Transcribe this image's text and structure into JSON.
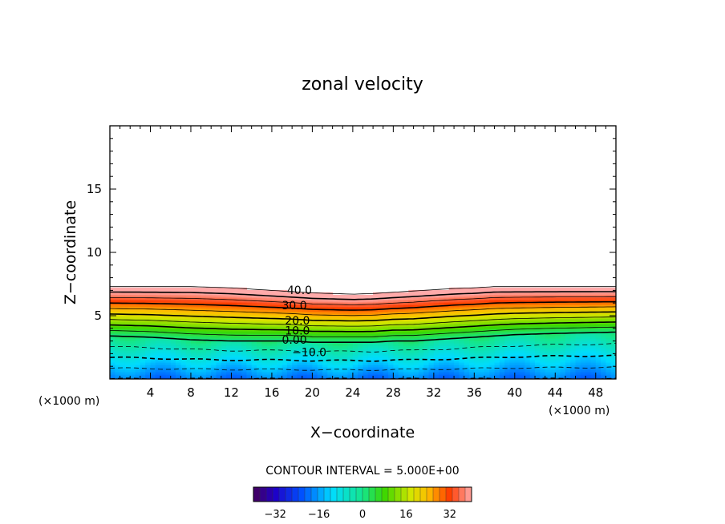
{
  "chart_data": {
    "type": "heatmap",
    "title": "zonal velocity",
    "xlabel": "X−coordinate",
    "ylabel": "Z−coordinate",
    "x_unit_left": "(×1000 m)",
    "x_unit_right": "(×1000 m)",
    "xlim": [
      0,
      50
    ],
    "ylim": [
      0,
      20
    ],
    "x_ticks": [
      4,
      8,
      12,
      16,
      20,
      24,
      28,
      32,
      36,
      40,
      44,
      48
    ],
    "y_ticks": [
      5,
      10,
      15
    ],
    "contour_interval_label": "CONTOUR INTERVAL = 5.000E+00",
    "contour_interval": 5.0,
    "contour_labels": [
      {
        "text": "40.0",
        "x": 17.5,
        "z": 6.7
      },
      {
        "text": "30.0",
        "x": 17.0,
        "z": 5.5
      },
      {
        "text": "20.0",
        "x": 17.3,
        "z": 4.3
      },
      {
        "text": "10.0",
        "x": 17.3,
        "z": 3.5
      },
      {
        "text": "0.00",
        "x": 17.0,
        "z": 2.8
      },
      {
        "text": "−10.0",
        "x": 18.0,
        "z": 1.8
      }
    ],
    "field_profile": {
      "x": [
        0,
        4,
        8,
        12,
        14,
        16,
        18,
        20,
        22,
        24,
        26,
        28,
        30,
        32,
        34,
        36,
        38,
        40,
        44,
        50
      ],
      "top_height": [
        7.3,
        7.3,
        7.3,
        7.2,
        7.1,
        7.0,
        6.9,
        6.8,
        6.75,
        6.7,
        6.75,
        6.85,
        6.95,
        7.05,
        7.15,
        7.2,
        7.3,
        7.3,
        7.3,
        7.3
      ],
      "zero_height": [
        3.4,
        3.3,
        3.1,
        3.0,
        3.0,
        3.0,
        3.0,
        2.9,
        2.9,
        2.9,
        2.9,
        3.0,
        3.0,
        3.1,
        3.2,
        3.3,
        3.4,
        3.5,
        3.6,
        3.7
      ]
    },
    "colorbar": {
      "range": [
        -40,
        40
      ],
      "ticks": [
        -32,
        -16,
        0,
        16,
        32
      ],
      "tick_labels": [
        "−32",
        "−16",
        "0",
        "16",
        "32"
      ]
    },
    "grid": false
  }
}
